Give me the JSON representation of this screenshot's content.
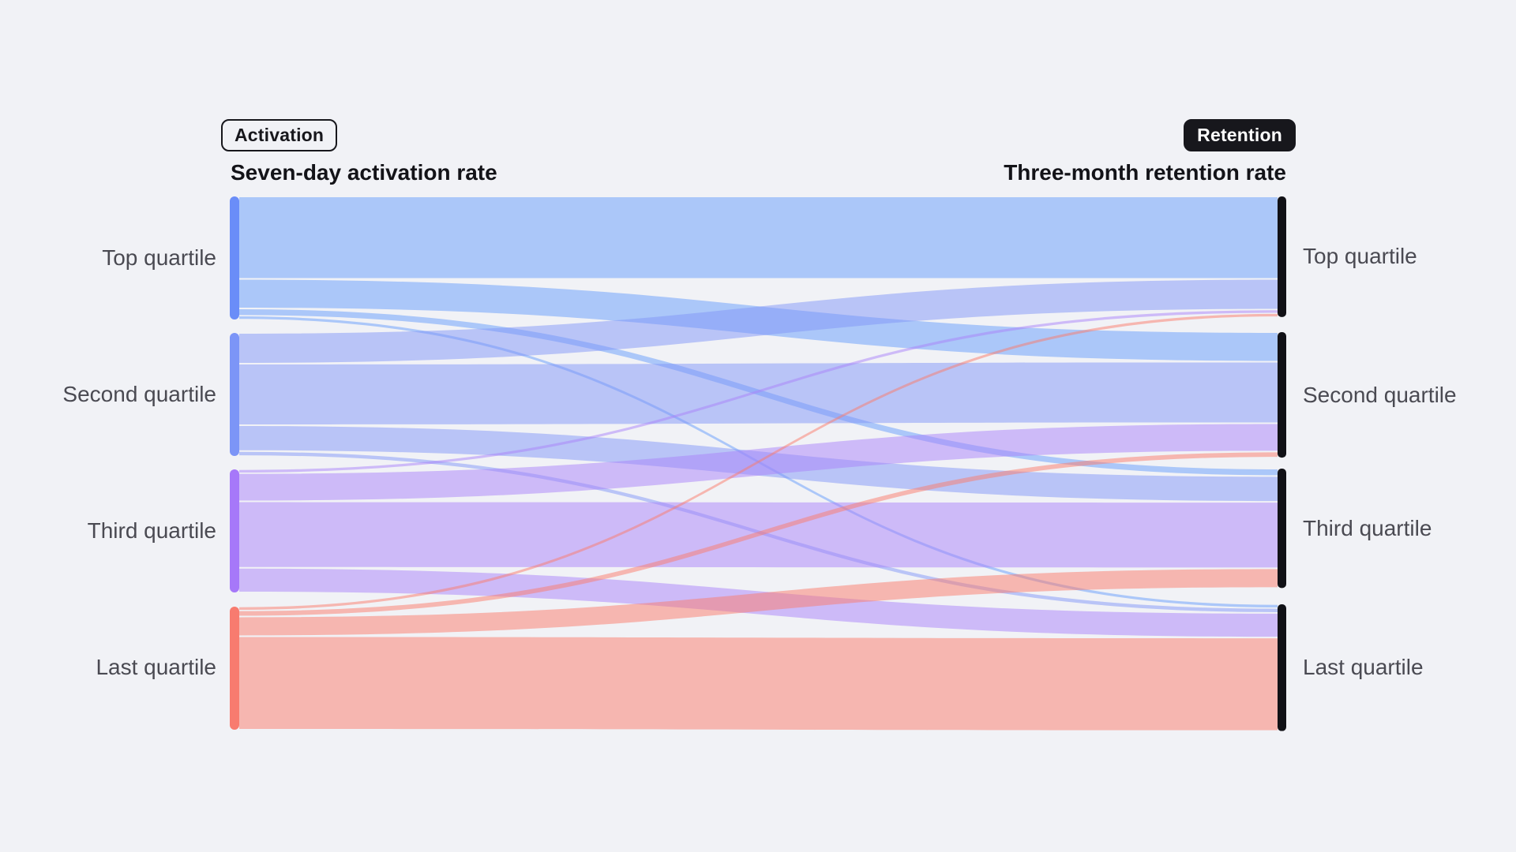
{
  "page": {
    "background_color": "#f1f2f6"
  },
  "badges": {
    "activation": {
      "label": "Activation",
      "variant": "outline"
    },
    "retention": {
      "label": "Retention",
      "variant": "solid"
    }
  },
  "headers": {
    "left": "Seven-day activation rate",
    "right": "Three-month retention rate"
  },
  "chart_data": {
    "type": "sankey",
    "left_column_title": "Seven-day activation rate",
    "right_column_title": "Three-month retention rate",
    "left_nodes": [
      "Top quartile",
      "Second quartile",
      "Third quartile",
      "Last quartile"
    ],
    "right_nodes": [
      "Top quartile",
      "Second quartile",
      "Third quartile",
      "Last quartile"
    ],
    "node_colors_left": [
      "#6a8df8",
      "#7c95f7",
      "#a678f9",
      "#f87b6f"
    ],
    "node_color_right": "#111116",
    "flow_colors": [
      "rgba(102,155,251,0.5)",
      "rgba(130,149,247,0.5)",
      "rgba(170,129,249,0.5)",
      "rgba(252,121,106,0.5)"
    ],
    "flows": [
      {
        "source": "Top quartile",
        "target": "Top quartile",
        "value": 67
      },
      {
        "source": "Top quartile",
        "target": "Second quartile",
        "value": 24
      },
      {
        "source": "Top quartile",
        "target": "Third quartile",
        "value": 6
      },
      {
        "source": "Top quartile",
        "target": "Last quartile",
        "value": 3
      },
      {
        "source": "Second quartile",
        "target": "Top quartile",
        "value": 25
      },
      {
        "source": "Second quartile",
        "target": "Second quartile",
        "value": 50
      },
      {
        "source": "Second quartile",
        "target": "Third quartile",
        "value": 21
      },
      {
        "source": "Second quartile",
        "target": "Last quartile",
        "value": 4
      },
      {
        "source": "Third quartile",
        "target": "Top quartile",
        "value": 3
      },
      {
        "source": "Third quartile",
        "target": "Second quartile",
        "value": 23
      },
      {
        "source": "Third quartile",
        "target": "Third quartile",
        "value": 54
      },
      {
        "source": "Third quartile",
        "target": "Last quartile",
        "value": 20
      },
      {
        "source": "Last quartile",
        "target": "Top quartile",
        "value": 3
      },
      {
        "source": "Last quartile",
        "target": "Second quartile",
        "value": 5
      },
      {
        "source": "Last quartile",
        "target": "Third quartile",
        "value": 16
      },
      {
        "source": "Last quartile",
        "target": "Last quartile",
        "value": 76
      }
    ]
  }
}
